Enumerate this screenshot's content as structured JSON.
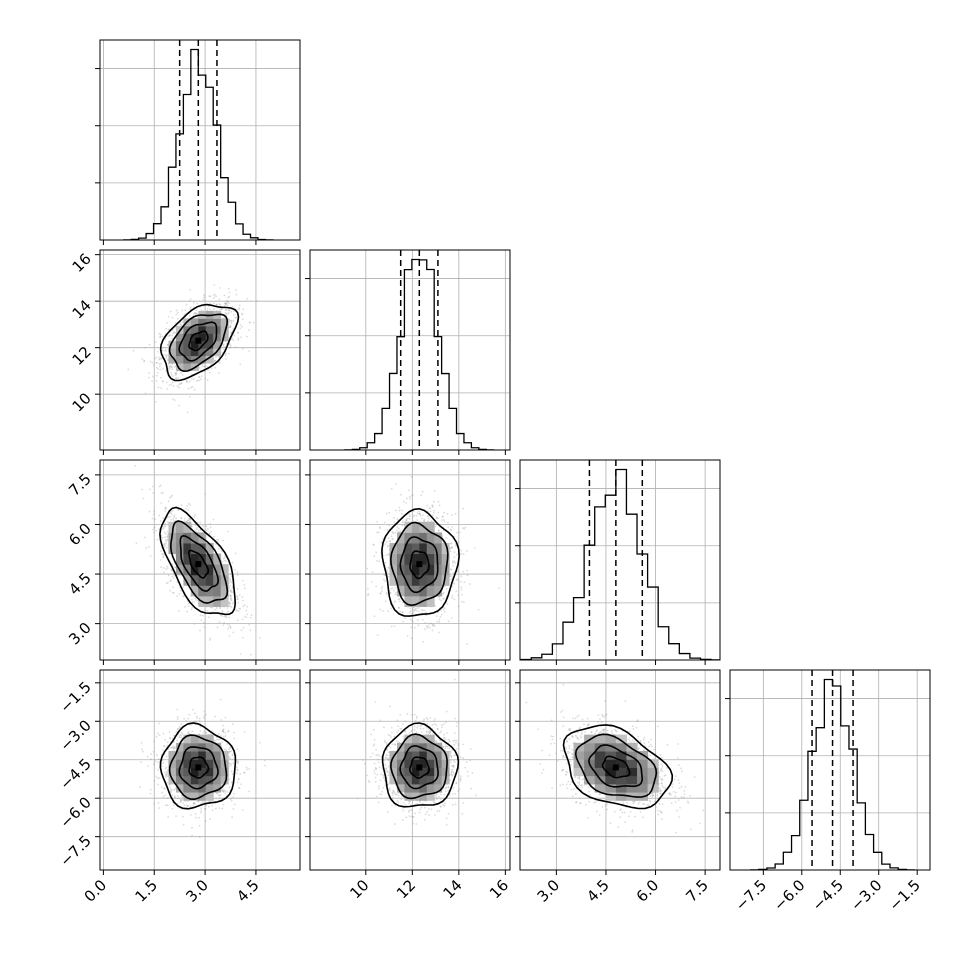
{
  "chart_data": {
    "type": "corner",
    "parameters": [
      {
        "mean": 2.8,
        "sd": 0.55,
        "range": [
          -0.1,
          5.8
        ],
        "ticks": [
          "0.0",
          "1.5",
          "3.0",
          "4.5"
        ],
        "tick_values": [
          0.0,
          1.5,
          3.0,
          4.5
        ],
        "quantiles": [
          2.25,
          2.8,
          3.35
        ]
      },
      {
        "mean": 12.3,
        "sd": 0.8,
        "range": [
          7.6,
          16.2
        ],
        "ticks": [
          "10",
          "12",
          "14",
          "16"
        ],
        "tick_values": [
          10,
          12,
          14,
          16
        ],
        "quantiles": [
          11.5,
          12.3,
          13.1
        ]
      },
      {
        "mean": 4.8,
        "sd": 0.8,
        "range": [
          1.9,
          7.95
        ],
        "ticks": [
          "3.0",
          "4.5",
          "6.0",
          "7.5"
        ],
        "tick_values": [
          3.0,
          4.5,
          6.0,
          7.5
        ],
        "quantiles": [
          4.0,
          4.8,
          5.6
        ]
      },
      {
        "mean": -4.8,
        "sd": 0.8,
        "range": [
          -8.8,
          -1.0
        ],
        "ticks": [
          "−7.5",
          "−6.0",
          "−4.5",
          "−3.0",
          "−1.5"
        ],
        "tick_values": [
          -7.5,
          -6.0,
          -4.5,
          -3.0,
          -1.5
        ],
        "quantiles": [
          -5.6,
          -4.8,
          -4.0
        ]
      }
    ],
    "correlations": {
      "0-1": 0.45,
      "0-2": -0.6,
      "0-3": 0.0,
      "1-2": 0.0,
      "1-3": 0.0,
      "2-3": -0.35
    },
    "histogram_bins": 20,
    "contour_levels_sigma": [
      0.5,
      1.0,
      1.5,
      2.0
    ],
    "scatter_points": 1400,
    "colors": {
      "line": "#000000",
      "scatter": "#9a9a9a",
      "grid": "#b0b0b0"
    },
    "grid": true
  }
}
